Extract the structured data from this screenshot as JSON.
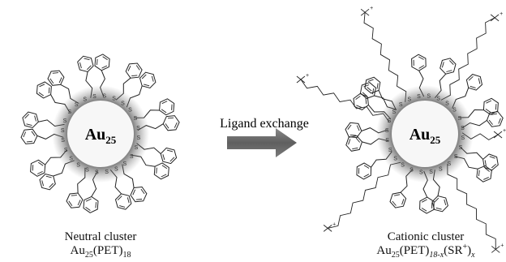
{
  "neutral": {
    "core_label": "Au",
    "core_sub": "25",
    "sulfur_label": "S",
    "caption_name": "Neutral cluster",
    "formula": {
      "base": "Au",
      "base_sub": "25",
      "ligand": "(PET)",
      "ligand_sub": "18"
    },
    "ligand_count": 18
  },
  "arrow": {
    "label": "Ligand exchange"
  },
  "cationic": {
    "core_label": "Au",
    "core_sub": "25",
    "sulfur_label": "S",
    "caption_name": "Cationic cluster",
    "formula": {
      "base": "Au",
      "base_sub": "25",
      "ligand1": "(PET)",
      "ligand1_sub": "18-x",
      "ligand2_open": "(SR",
      "ligand2_sup": "+",
      "ligand2_close": ")",
      "ligand2_sub": "x"
    },
    "cationic_ligand_count": 6,
    "charge_symbol": "+"
  },
  "colors": {
    "core_fill": "#f7f7f7",
    "core_halo": "#555555",
    "arrow": "#6e6e6e",
    "ink": "#111111"
  }
}
